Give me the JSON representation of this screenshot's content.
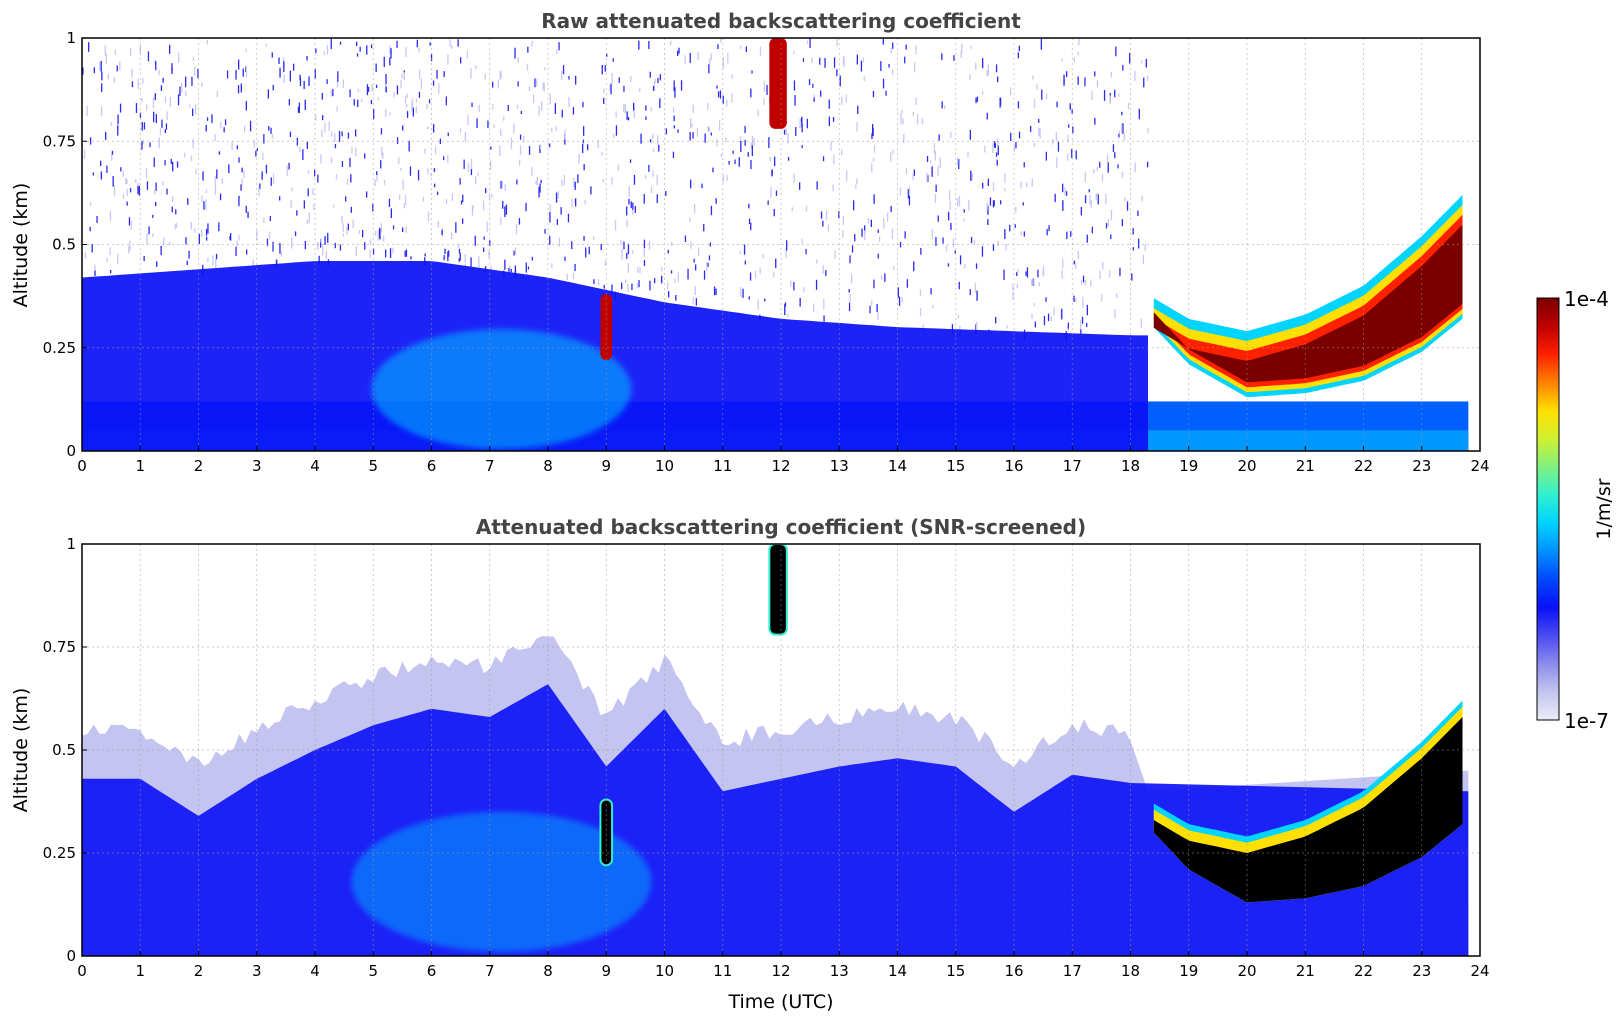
{
  "chart_data": [
    {
      "type": "heatmap",
      "title": "Raw attenuated backscattering coefficient",
      "xlabel": "",
      "ylabel": "Altitude (km)",
      "xlim": [
        0,
        24
      ],
      "ylim": [
        0,
        1
      ],
      "x_ticks": [
        "0",
        "1",
        "2",
        "3",
        "4",
        "5",
        "6",
        "7",
        "8",
        "9",
        "10",
        "11",
        "12",
        "13",
        "14",
        "15",
        "16",
        "17",
        "18",
        "19",
        "20",
        "21",
        "22",
        "23",
        "24"
      ],
      "y_ticks": [
        "0",
        "0.25",
        "0.5",
        "0.75",
        "1"
      ],
      "grid": true,
      "data_end_hour": 23.8,
      "features": {
        "boundary_layer_top_km": [
          [
            0,
            0.42
          ],
          [
            2,
            0.44
          ],
          [
            4,
            0.46
          ],
          [
            6,
            0.46
          ],
          [
            8,
            0.42
          ],
          [
            10,
            0.36
          ],
          [
            12,
            0.32
          ],
          [
            14,
            0.3
          ],
          [
            16,
            0.29
          ],
          [
            18,
            0.28
          ]
        ],
        "cloud_base_km": [
          [
            18.4,
            0.3
          ],
          [
            19,
            0.21
          ],
          [
            20,
            0.13
          ],
          [
            21,
            0.14
          ],
          [
            22,
            0.17
          ],
          [
            23,
            0.24
          ],
          [
            23.7,
            0.32
          ]
        ],
        "cloud_top_km": [
          [
            18.4,
            0.37
          ],
          [
            19,
            0.32
          ],
          [
            20,
            0.29
          ],
          [
            21,
            0.33
          ],
          [
            22,
            0.4
          ],
          [
            23,
            0.52
          ],
          [
            23.7,
            0.62
          ]
        ],
        "clear_above_after_hour": 18.3,
        "cloud_patches": [
          {
            "x": [
              11.8,
              12.1
            ],
            "y_km": [
              0.78,
              1.0
            ]
          },
          {
            "x": [
              8.9,
              9.1
            ],
            "y_km": [
              0.22,
              0.38
            ]
          }
        ]
      }
    },
    {
      "type": "heatmap",
      "title": "Attenuated backscattering coefficient (SNR-screened)",
      "xlabel": "Time (UTC)",
      "ylabel": "Altitude (km)",
      "xlim": [
        0,
        24
      ],
      "ylim": [
        0,
        1
      ],
      "x_ticks": [
        "0",
        "1",
        "2",
        "3",
        "4",
        "5",
        "6",
        "7",
        "8",
        "9",
        "10",
        "11",
        "12",
        "13",
        "14",
        "15",
        "16",
        "17",
        "18",
        "19",
        "20",
        "21",
        "22",
        "23",
        "24"
      ],
      "y_ticks": [
        "0",
        "0.25",
        "0.5",
        "0.75",
        "1"
      ],
      "grid": true,
      "data_end_hour": 23.8,
      "features": {
        "signal_top_km": [
          [
            0,
            0.55
          ],
          [
            1,
            0.55
          ],
          [
            2,
            0.46
          ],
          [
            3,
            0.55
          ],
          [
            4,
            0.62
          ],
          [
            5,
            0.68
          ],
          [
            6,
            0.72
          ],
          [
            7,
            0.7
          ],
          [
            8,
            0.78
          ],
          [
            9,
            0.58
          ],
          [
            10,
            0.72
          ],
          [
            11,
            0.52
          ],
          [
            12,
            0.55
          ],
          [
            13,
            0.58
          ],
          [
            14,
            0.6
          ],
          [
            15,
            0.58
          ],
          [
            16,
            0.47
          ],
          [
            17,
            0.56
          ],
          [
            18,
            0.54
          ]
        ],
        "saturated_cloud_color": "#000000"
      }
    }
  ],
  "colorbar": {
    "label": "1/m/sr",
    "max_label": "1e-4",
    "min_label": "1e-7",
    "range": [
      1e-07,
      0.0001
    ],
    "scale": "log",
    "colormap": [
      "#ececf8",
      "#c4c4f0",
      "#8c8cec",
      "#4a4af2",
      "#0a10f6",
      "#0048ff",
      "#0090ff",
      "#00d4ff",
      "#30f0d0",
      "#80f080",
      "#d0f030",
      "#ffe000",
      "#ff8000",
      "#ff2000",
      "#c00000",
      "#7a0000"
    ]
  }
}
